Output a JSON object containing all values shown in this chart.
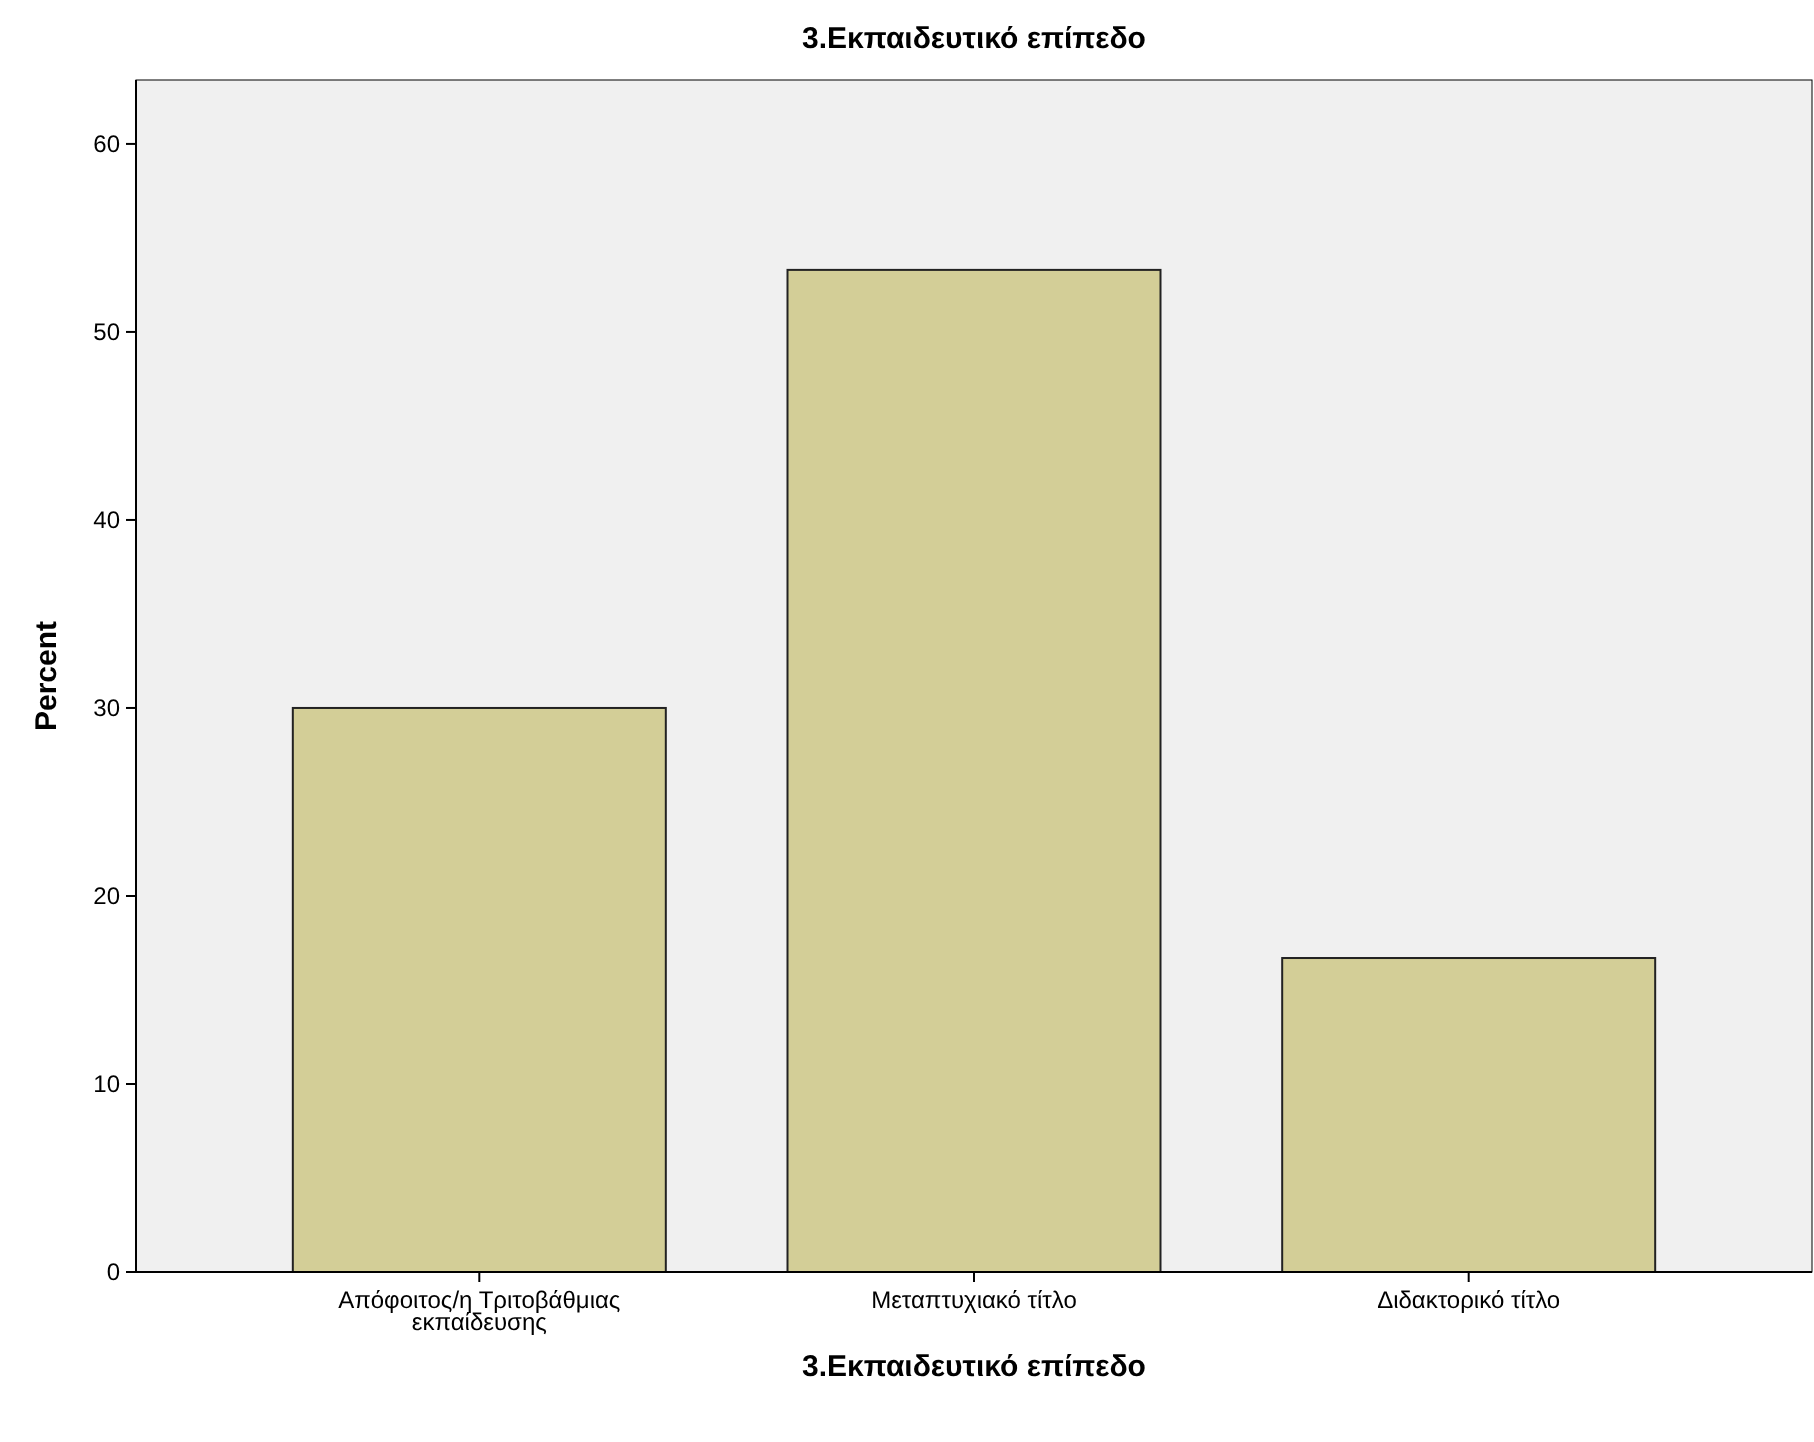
{
  "chart_data": {
    "type": "bar",
    "title": "3.Εκπαιδευτικό επίπεδο",
    "xlabel": "3.Εκπαιδευτικό επίπεδο",
    "ylabel": "Percent",
    "categories": [
      "Απόφοιτος/η Τριτοβάθμιας εκπαίδευσης",
      "Μεταπτυχιακό τίτλο",
      "Διδακτορικό τίτλο"
    ],
    "values": [
      30.0,
      53.3,
      16.7
    ],
    "color": "#d3ce97",
    "ylim": [
      0,
      63.4
    ],
    "yticks": [
      0,
      10,
      20,
      30,
      40,
      50,
      60
    ],
    "grid": false
  }
}
